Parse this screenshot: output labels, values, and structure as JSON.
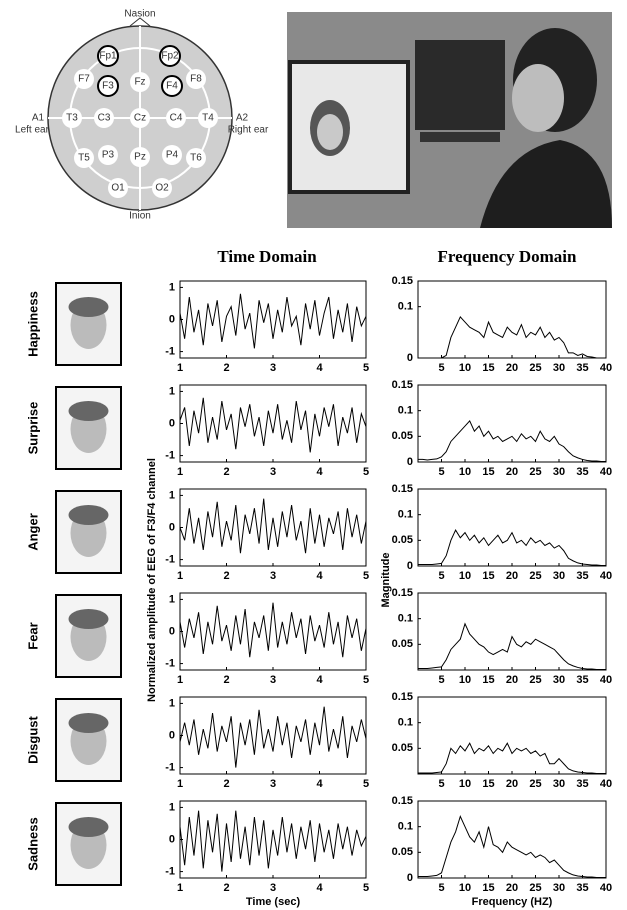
{
  "electrode_map": {
    "nasion": "Nasion",
    "inion": "Inion",
    "left_ear_code": "A1",
    "left_ear": "Left ear",
    "right_ear_code": "A2",
    "right_ear": "Right ear",
    "electrodes": [
      "Fp1",
      "Fp2",
      "F7",
      "F3",
      "Fz",
      "F4",
      "F8",
      "T3",
      "C3",
      "Cz",
      "C4",
      "T4",
      "T5",
      "P3",
      "Pz",
      "P4",
      "T6",
      "O1",
      "O2"
    ]
  },
  "figure": {
    "time_title": "Time Domain",
    "freq_title": "Frequency Domain",
    "time_ylabel": "Normalized amplitude of EEG of F3/F4 channel",
    "freq_ylabel": "Magnitude",
    "time_xlabel": "Time (sec)",
    "freq_xlabel": "Frequency (HZ)",
    "emotions": [
      "Happiness",
      "Surprise",
      "Anger",
      "Fear",
      "Disgust",
      "Sadness"
    ]
  },
  "chart_data": [
    {
      "type": "line",
      "color": "#000",
      "xlim": [
        1,
        5
      ],
      "ylim": [
        -1.2,
        1.2
      ],
      "xticks": [
        1,
        2,
        3,
        4,
        5
      ],
      "yticks": [
        -1,
        0,
        1
      ],
      "x": [
        1,
        1.1,
        1.2,
        1.3,
        1.4,
        1.5,
        1.6,
        1.7,
        1.8,
        1.9,
        2,
        2.1,
        2.2,
        2.3,
        2.4,
        2.5,
        2.6,
        2.7,
        2.8,
        2.9,
        3,
        3.1,
        3.2,
        3.3,
        3.4,
        3.5,
        3.6,
        3.7,
        3.8,
        3.9,
        4,
        4.1,
        4.2,
        4.3,
        4.4,
        4.5,
        4.6,
        4.7,
        4.8,
        4.9,
        5
      ],
      "values": [
        0.2,
        -0.6,
        0.7,
        -0.4,
        0.3,
        -0.8,
        0.5,
        -0.2,
        0.6,
        -0.7,
        0.1,
        0.4,
        -0.5,
        0.8,
        -0.3,
        0.2,
        -0.9,
        0.6,
        -0.1,
        0.5,
        -0.6,
        0.3,
        -0.4,
        0.7,
        -0.2,
        0.1,
        -0.8,
        0.5,
        -0.3,
        0.6,
        -0.5,
        0.2,
        0.7,
        -0.6,
        0.3,
        -0.4,
        0.5,
        -0.7,
        0.4,
        -0.2,
        0.1
      ]
    },
    {
      "type": "line",
      "color": "#000",
      "xlim": [
        0,
        40
      ],
      "ylim": [
        0,
        0.15
      ],
      "xticks": [
        5,
        10,
        15,
        20,
        25,
        30,
        35,
        40
      ],
      "yticks": [
        0,
        0.1,
        0.15
      ],
      "x": [
        0,
        1,
        2,
        3,
        4,
        5,
        6,
        7,
        8,
        9,
        10,
        11,
        12,
        13,
        14,
        15,
        16,
        17,
        18,
        19,
        20,
        21,
        22,
        23,
        24,
        25,
        26,
        27,
        28,
        29,
        30,
        31,
        32,
        33,
        34,
        35,
        36,
        37,
        38,
        39,
        40
      ],
      "values": [
        0,
        0,
        0,
        0,
        0,
        0,
        0.005,
        0.04,
        0.06,
        0.08,
        0.07,
        0.06,
        0.055,
        0.05,
        0.04,
        0.07,
        0.05,
        0.045,
        0.04,
        0.06,
        0.05,
        0.045,
        0.065,
        0.04,
        0.05,
        0.045,
        0.06,
        0.04,
        0.05,
        0.035,
        0.04,
        0.03,
        0.01,
        0.01,
        0.005,
        0.008,
        0.003,
        0.002,
        0,
        0,
        0
      ]
    },
    {
      "type": "line",
      "color": "#000",
      "xlim": [
        1,
        5
      ],
      "ylim": [
        -1.2,
        1.2
      ],
      "xticks": [
        1,
        2,
        3,
        4,
        5
      ],
      "yticks": [
        -1,
        0,
        1
      ],
      "x": [
        1,
        1.1,
        1.2,
        1.3,
        1.4,
        1.5,
        1.6,
        1.7,
        1.8,
        1.9,
        2,
        2.1,
        2.2,
        2.3,
        2.4,
        2.5,
        2.6,
        2.7,
        2.8,
        2.9,
        3,
        3.1,
        3.2,
        3.3,
        3.4,
        3.5,
        3.6,
        3.7,
        3.8,
        3.9,
        4,
        4.1,
        4.2,
        4.3,
        4.4,
        4.5,
        4.6,
        4.7,
        4.8,
        4.9,
        5
      ],
      "values": [
        0.1,
        0.5,
        -0.7,
        0.4,
        -0.3,
        0.8,
        -0.6,
        0.2,
        -0.5,
        0.7,
        -0.2,
        0.3,
        -0.8,
        0.5,
        -0.1,
        0.6,
        -0.4,
        0.2,
        -0.7,
        0.4,
        -0.3,
        0.6,
        -0.5,
        0.1,
        -0.6,
        0.7,
        -0.2,
        0.4,
        -0.9,
        0.3,
        -0.4,
        0.5,
        -0.1,
        0.6,
        -0.7,
        0.2,
        -0.3,
        0.5,
        -0.6,
        0.3,
        -0.1
      ]
    },
    {
      "type": "line",
      "color": "#000",
      "xlim": [
        0,
        40
      ],
      "ylim": [
        0,
        0.15
      ],
      "xticks": [
        5,
        10,
        15,
        20,
        25,
        30,
        35,
        40
      ],
      "yticks": [
        0,
        0.05,
        0.1,
        0.15
      ],
      "x": [
        0,
        1,
        2,
        3,
        4,
        5,
        6,
        7,
        8,
        9,
        10,
        11,
        12,
        13,
        14,
        15,
        16,
        17,
        18,
        19,
        20,
        21,
        22,
        23,
        24,
        25,
        26,
        27,
        28,
        29,
        30,
        31,
        32,
        33,
        34,
        35,
        36,
        37,
        38,
        39,
        40
      ],
      "values": [
        0.005,
        0.005,
        0.004,
        0.005,
        0.006,
        0.01,
        0.02,
        0.04,
        0.05,
        0.06,
        0.07,
        0.08,
        0.06,
        0.07,
        0.05,
        0.06,
        0.045,
        0.05,
        0.04,
        0.045,
        0.05,
        0.04,
        0.055,
        0.045,
        0.05,
        0.04,
        0.06,
        0.045,
        0.04,
        0.05,
        0.035,
        0.03,
        0.02,
        0.012,
        0.008,
        0.005,
        0.003,
        0.002,
        0.002,
        0.001,
        0.001
      ]
    },
    {
      "type": "line",
      "color": "#000",
      "xlim": [
        1,
        5
      ],
      "ylim": [
        -1.2,
        1.2
      ],
      "xticks": [
        1,
        2,
        3,
        4,
        5
      ],
      "yticks": [
        -1,
        0,
        1
      ],
      "x": [
        1,
        1.1,
        1.2,
        1.3,
        1.4,
        1.5,
        1.6,
        1.7,
        1.8,
        1.9,
        2,
        2.1,
        2.2,
        2.3,
        2.4,
        2.5,
        2.6,
        2.7,
        2.8,
        2.9,
        3,
        3.1,
        3.2,
        3.3,
        3.4,
        3.5,
        3.6,
        3.7,
        3.8,
        3.9,
        4,
        4.1,
        4.2,
        4.3,
        4.4,
        4.5,
        4.6,
        4.7,
        4.8,
        4.9,
        5
      ],
      "values": [
        0,
        -0.4,
        0.6,
        -0.5,
        0.3,
        -0.7,
        0.5,
        -0.3,
        0.8,
        -0.6,
        0.2,
        -0.4,
        0.7,
        -0.8,
        0.4,
        -0.2,
        0.6,
        -0.5,
        0.9,
        -0.7,
        0.3,
        -0.6,
        0.5,
        -0.3,
        0.7,
        -0.4,
        0.2,
        -0.8,
        0.6,
        -0.5,
        0.4,
        -0.6,
        0.3,
        -0.2,
        0.5,
        -0.7,
        0.6,
        -0.3,
        0.4,
        -0.5,
        0.2
      ]
    },
    {
      "type": "line",
      "color": "#000",
      "xlim": [
        0,
        40
      ],
      "ylim": [
        0,
        0.15
      ],
      "xticks": [
        5,
        10,
        15,
        20,
        25,
        30,
        35,
        40
      ],
      "yticks": [
        0,
        0.05,
        0.1,
        0.15
      ],
      "x": [
        0,
        1,
        2,
        3,
        4,
        5,
        6,
        7,
        8,
        9,
        10,
        11,
        12,
        13,
        14,
        15,
        16,
        17,
        18,
        19,
        20,
        21,
        22,
        23,
        24,
        25,
        26,
        27,
        28,
        29,
        30,
        31,
        32,
        33,
        34,
        35,
        36,
        37,
        38,
        39,
        40
      ],
      "values": [
        0.003,
        0.003,
        0.003,
        0.003,
        0.004,
        0.005,
        0.02,
        0.05,
        0.07,
        0.055,
        0.065,
        0.05,
        0.06,
        0.045,
        0.055,
        0.04,
        0.05,
        0.06,
        0.045,
        0.05,
        0.065,
        0.045,
        0.05,
        0.04,
        0.055,
        0.045,
        0.05,
        0.04,
        0.045,
        0.035,
        0.04,
        0.03,
        0.015,
        0.01,
        0.006,
        0.004,
        0.003,
        0.002,
        0.002,
        0.001,
        0.001
      ]
    },
    {
      "type": "line",
      "color": "#000",
      "xlim": [
        1,
        5
      ],
      "ylim": [
        -1.2,
        1.2
      ],
      "xticks": [
        1,
        2,
        3,
        4,
        5
      ],
      "yticks": [
        -1,
        0,
        1
      ],
      "x": [
        1,
        1.1,
        1.2,
        1.3,
        1.4,
        1.5,
        1.6,
        1.7,
        1.8,
        1.9,
        2,
        2.1,
        2.2,
        2.3,
        2.4,
        2.5,
        2.6,
        2.7,
        2.8,
        2.9,
        3,
        3.1,
        3.2,
        3.3,
        3.4,
        3.5,
        3.6,
        3.7,
        3.8,
        3.9,
        4,
        4.1,
        4.2,
        4.3,
        4.4,
        4.5,
        4.6,
        4.7,
        4.8,
        4.9,
        5
      ],
      "values": [
        0.3,
        -0.5,
        0.4,
        -0.2,
        0.6,
        -0.7,
        0.3,
        -0.4,
        0.8,
        -0.3,
        0.2,
        -0.6,
        0.5,
        -0.4,
        0.7,
        -0.8,
        0.3,
        -0.2,
        0.5,
        -0.6,
        0.9,
        -0.5,
        0.3,
        -0.4,
        0.6,
        -0.2,
        0.4,
        -0.7,
        0.5,
        -0.3,
        0.2,
        -0.5,
        0.6,
        -0.4,
        0.3,
        -0.8,
        0.5,
        -0.2,
        0.4,
        -0.6,
        0.1
      ]
    },
    {
      "type": "line",
      "color": "#000",
      "xlim": [
        0,
        40
      ],
      "ylim": [
        0,
        0.15
      ],
      "xticks": [
        5,
        10,
        15,
        20,
        25,
        30,
        35,
        40
      ],
      "yticks": [
        0.05,
        0.1,
        0.15
      ],
      "x": [
        0,
        1,
        2,
        3,
        4,
        5,
        6,
        7,
        8,
        9,
        10,
        11,
        12,
        13,
        14,
        15,
        16,
        17,
        18,
        19,
        20,
        21,
        22,
        23,
        24,
        25,
        26,
        27,
        28,
        29,
        30,
        31,
        32,
        33,
        34,
        35,
        36,
        37,
        38,
        39,
        40
      ],
      "values": [
        0.003,
        0.003,
        0.003,
        0.004,
        0.005,
        0.006,
        0.02,
        0.04,
        0.05,
        0.06,
        0.09,
        0.07,
        0.06,
        0.05,
        0.045,
        0.035,
        0.03,
        0.035,
        0.04,
        0.035,
        0.065,
        0.05,
        0.045,
        0.055,
        0.05,
        0.06,
        0.055,
        0.05,
        0.045,
        0.04,
        0.03,
        0.02,
        0.012,
        0.008,
        0.005,
        0.003,
        0.002,
        0.002,
        0.001,
        0.001,
        0.001
      ]
    },
    {
      "type": "line",
      "color": "#000",
      "xlim": [
        1,
        5
      ],
      "ylim": [
        -1.2,
        1.2
      ],
      "xticks": [
        1,
        2,
        3,
        4,
        5
      ],
      "yticks": [
        -1,
        0,
        1
      ],
      "x": [
        1,
        1.1,
        1.2,
        1.3,
        1.4,
        1.5,
        1.6,
        1.7,
        1.8,
        1.9,
        2,
        2.1,
        2.2,
        2.3,
        2.4,
        2.5,
        2.6,
        2.7,
        2.8,
        2.9,
        3,
        3.1,
        3.2,
        3.3,
        3.4,
        3.5,
        3.6,
        3.7,
        3.8,
        3.9,
        4,
        4.1,
        4.2,
        4.3,
        4.4,
        4.5,
        4.6,
        4.7,
        4.8,
        4.9,
        5
      ],
      "values": [
        -0.2,
        0.4,
        -0.3,
        0.5,
        -0.6,
        0.2,
        -0.4,
        0.7,
        -0.5,
        0.3,
        -0.2,
        0.6,
        -1,
        0.4,
        -0.3,
        0.5,
        -0.6,
        0.8,
        -0.4,
        0.2,
        -0.5,
        0.6,
        -0.3,
        0.4,
        -0.7,
        0.3,
        -0.2,
        0.5,
        -0.6,
        0.4,
        -0.3,
        0.9,
        -0.5,
        0.2,
        -0.4,
        0.6,
        -0.7,
        0.3,
        -0.2,
        0.5,
        -0.1
      ]
    },
    {
      "type": "line",
      "color": "#000",
      "xlim": [
        0,
        40
      ],
      "ylim": [
        0,
        0.15
      ],
      "xticks": [
        5,
        10,
        15,
        20,
        25,
        30,
        35,
        40
      ],
      "yticks": [
        0.05,
        0.1,
        0.15
      ],
      "x": [
        0,
        1,
        2,
        3,
        4,
        5,
        6,
        7,
        8,
        9,
        10,
        11,
        12,
        13,
        14,
        15,
        16,
        17,
        18,
        19,
        20,
        21,
        22,
        23,
        24,
        25,
        26,
        27,
        28,
        29,
        30,
        31,
        32,
        33,
        34,
        35,
        36,
        37,
        38,
        39,
        40
      ],
      "values": [
        0.002,
        0.002,
        0.002,
        0.002,
        0.003,
        0.004,
        0.02,
        0.05,
        0.04,
        0.055,
        0.045,
        0.06,
        0.04,
        0.05,
        0.045,
        0.055,
        0.04,
        0.05,
        0.045,
        0.06,
        0.04,
        0.05,
        0.045,
        0.05,
        0.04,
        0.045,
        0.035,
        0.04,
        0.02,
        0.02,
        0.03,
        0.02,
        0.01,
        0.006,
        0.004,
        0.003,
        0.002,
        0.002,
        0.001,
        0.001,
        0.001
      ]
    },
    {
      "type": "line",
      "color": "#000",
      "xlim": [
        1,
        5
      ],
      "ylim": [
        -1.2,
        1.2
      ],
      "xticks": [
        1,
        2,
        3,
        4,
        5
      ],
      "yticks": [
        -1,
        0,
        1
      ],
      "x": [
        1,
        1.1,
        1.2,
        1.3,
        1.4,
        1.5,
        1.6,
        1.7,
        1.8,
        1.9,
        2,
        2.1,
        2.2,
        2.3,
        2.4,
        2.5,
        2.6,
        2.7,
        2.8,
        2.9,
        3,
        3.1,
        3.2,
        3.3,
        3.4,
        3.5,
        3.6,
        3.7,
        3.8,
        3.9,
        4,
        4.1,
        4.2,
        4.3,
        4.4,
        4.5,
        4.6,
        4.7,
        4.8,
        4.9,
        5
      ],
      "values": [
        0.4,
        -0.8,
        0.7,
        -0.5,
        0.9,
        -0.9,
        0.6,
        -0.4,
        0.8,
        -1,
        0.5,
        -0.7,
        0.9,
        -0.6,
        0.4,
        -0.8,
        0.7,
        -0.5,
        0.6,
        -0.9,
        0.3,
        -0.5,
        0.7,
        -0.4,
        0.5,
        -0.6,
        0.4,
        -0.3,
        0.6,
        -0.7,
        0.5,
        -0.4,
        0.3,
        -0.6,
        0.5,
        -0.3,
        0.4,
        -0.5,
        0.3,
        -0.2,
        0.1
      ]
    },
    {
      "type": "line",
      "color": "#000",
      "xlim": [
        0,
        40
      ],
      "ylim": [
        0,
        0.15
      ],
      "xticks": [
        5,
        10,
        15,
        20,
        25,
        30,
        35,
        40
      ],
      "yticks": [
        0,
        0.05,
        0.1,
        0.15
      ],
      "x": [
        0,
        1,
        2,
        3,
        4,
        5,
        6,
        7,
        8,
        9,
        10,
        11,
        12,
        13,
        14,
        15,
        16,
        17,
        18,
        19,
        20,
        21,
        22,
        23,
        24,
        25,
        26,
        27,
        28,
        29,
        30,
        31,
        32,
        33,
        34,
        35,
        36,
        37,
        38,
        39,
        40
      ],
      "values": [
        0.003,
        0.003,
        0.003,
        0.004,
        0.005,
        0.01,
        0.04,
        0.07,
        0.09,
        0.12,
        0.1,
        0.08,
        0.07,
        0.09,
        0.06,
        0.1,
        0.065,
        0.06,
        0.05,
        0.07,
        0.06,
        0.055,
        0.05,
        0.045,
        0.05,
        0.04,
        0.045,
        0.04,
        0.03,
        0.035,
        0.025,
        0.015,
        0.01,
        0.006,
        0.004,
        0.003,
        0.002,
        0.002,
        0.001,
        0.001,
        0.001
      ]
    }
  ]
}
